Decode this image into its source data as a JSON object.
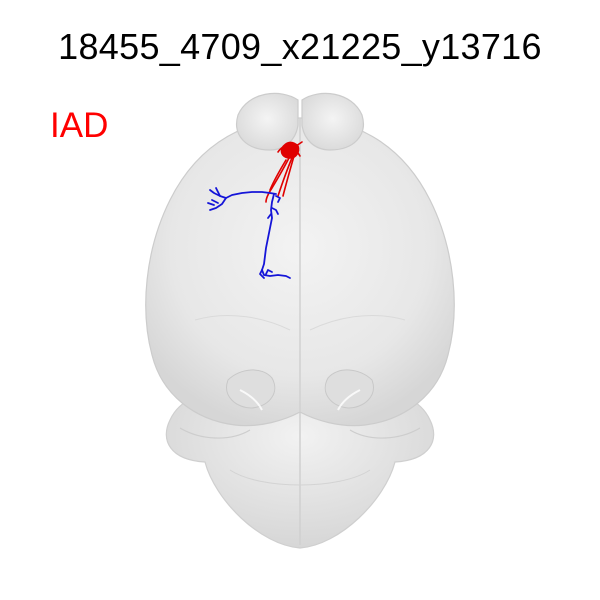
{
  "figure": {
    "title": "18455_4709_x21225_y13716",
    "region_label": "IAD"
  },
  "colors": {
    "background": "#ffffff",
    "brain_fill": "#e6e6e6",
    "brain_outline": "#cfcfcf",
    "axon_color": "#1010e0",
    "dendrite_color": "#e00000",
    "label_color": "#ff0000"
  }
}
